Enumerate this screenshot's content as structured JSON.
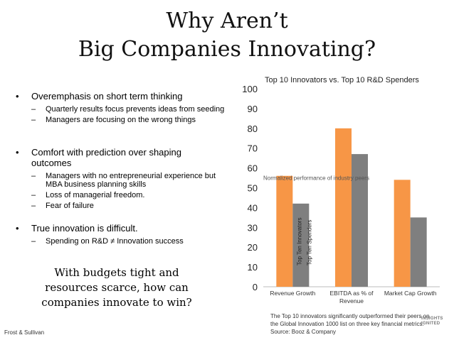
{
  "slide": {
    "title_line1": "Why Aren’t",
    "title_line2": "Big Companies Innovating?",
    "bullets": [
      {
        "text": "Overemphasis on short term thinking",
        "subs": [
          "Quarterly results focus prevents ideas from seeding",
          "Managers are focusing on the wrong things"
        ]
      },
      {
        "text": "Comfort with prediction over shaping outcomes",
        "subs": [
          "Managers with no entrepreneurial experience but MBA business planning skills",
          "Loss of managerial freedom.",
          "Fear of failure"
        ]
      },
      {
        "text": "True innovation is difficult.",
        "subs": [
          "Spending on R&D ≠ Innovation success"
        ]
      }
    ],
    "callout": "With budgets tight and resources scarce, how can companies innovate to win?",
    "footer_left": "Frost & Sullivan",
    "caption": "The Top 10 innovators significantly outperformed their peers on the Global Innovation 1000 list on three key financial metrics.        Source:  Booz & Company",
    "logo_line1": "INSIGHTS",
    "logo_line2": "IGNITED"
  },
  "chart_data": {
    "type": "bar",
    "title": "Top 10 Innovators vs. Top 10 R&D Spenders",
    "categories": [
      "Revenue Growth",
      "EBITDA as % of Revenue",
      "Market Cap Growth"
    ],
    "series": [
      {
        "name": "Top Ten Innovators",
        "values": [
          56,
          80,
          54
        ],
        "color": "#f79646"
      },
      {
        "name": "Top Ten Spenders",
        "values": [
          42,
          67,
          35
        ],
        "color": "#7f7f7f"
      }
    ],
    "ylim": [
      0,
      100
    ],
    "yticks": [
      0,
      10,
      20,
      30,
      40,
      50,
      60,
      70,
      80,
      90,
      100
    ],
    "annotation": "Normalized performance of industry peers",
    "annotation_value": 55,
    "xlabel": "",
    "ylabel": ""
  }
}
